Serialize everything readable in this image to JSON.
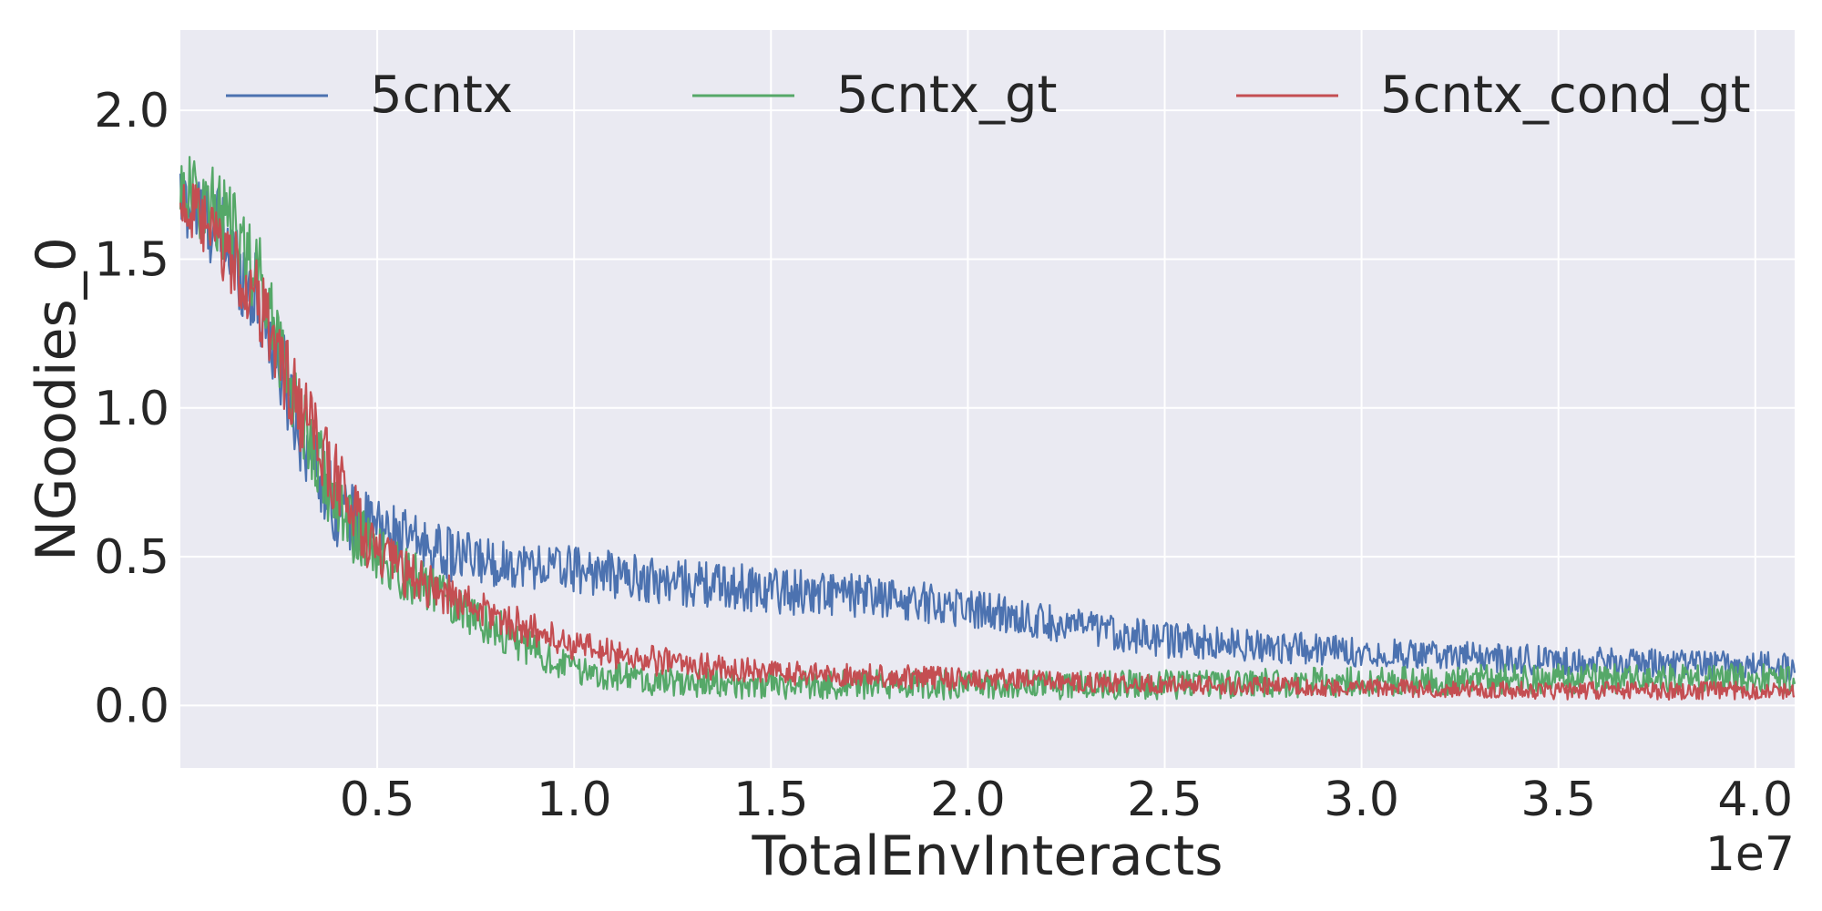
{
  "chart_data": {
    "type": "line",
    "title": "",
    "xlabel": "TotalEnvInteracts",
    "ylabel": "NGoodies_0",
    "x_offset_text": "1e7",
    "xlim": [
      0.0,
      4.1
    ],
    "ylim": [
      -0.21,
      2.27
    ],
    "x_ticks": [
      0.5,
      1.0,
      1.5,
      2.0,
      2.5,
      3.0,
      3.5,
      4.0
    ],
    "x_tick_labels": [
      "0.5",
      "1.0",
      "1.5",
      "2.0",
      "2.5",
      "3.0",
      "3.5",
      "4.0"
    ],
    "y_ticks": [
      0.0,
      0.5,
      1.0,
      1.5,
      2.0
    ],
    "y_tick_labels": [
      "0.0",
      "0.5",
      "1.0",
      "1.5",
      "2.0"
    ],
    "grid": true,
    "legend_placement": "top",
    "background": "#eaeaf2",
    "series": [
      {
        "name": "5cntx",
        "color": "#4c72b0",
        "x": [
          0.0,
          0.1,
          0.2,
          0.3,
          0.4,
          0.5,
          0.6,
          0.7,
          0.8,
          0.9,
          1.0,
          1.2,
          1.4,
          1.6,
          1.8,
          2.0,
          2.2,
          2.5,
          3.0,
          3.5,
          4.1
        ],
        "y": [
          1.7,
          1.6,
          1.35,
          0.95,
          0.65,
          0.6,
          0.55,
          0.5,
          0.48,
          0.47,
          0.46,
          0.42,
          0.4,
          0.38,
          0.36,
          0.33,
          0.28,
          0.22,
          0.18,
          0.15,
          0.13
        ],
        "noise": [
          0.12,
          0.15,
          0.15,
          0.15,
          0.12,
          0.1,
          0.09,
          0.09,
          0.08,
          0.08,
          0.08,
          0.08,
          0.08,
          0.08,
          0.07,
          0.07,
          0.06,
          0.06,
          0.05,
          0.05,
          0.05
        ]
      },
      {
        "name": "5cntx_gt",
        "color": "#55a868",
        "x": [
          0.0,
          0.1,
          0.2,
          0.3,
          0.4,
          0.5,
          0.6,
          0.7,
          0.8,
          0.9,
          1.0,
          1.2,
          1.5,
          2.0,
          2.5,
          3.0,
          3.5,
          4.1
        ],
        "y": [
          1.75,
          1.65,
          1.45,
          1.0,
          0.65,
          0.5,
          0.42,
          0.34,
          0.26,
          0.18,
          0.12,
          0.08,
          0.07,
          0.07,
          0.07,
          0.08,
          0.09,
          0.09
        ],
        "noise": [
          0.12,
          0.15,
          0.15,
          0.15,
          0.12,
          0.1,
          0.09,
          0.08,
          0.07,
          0.06,
          0.05,
          0.05,
          0.05,
          0.05,
          0.05,
          0.05,
          0.05,
          0.05
        ]
      },
      {
        "name": "5cntx_cond_gt",
        "color": "#c44e52",
        "x": [
          0.0,
          0.1,
          0.2,
          0.3,
          0.4,
          0.5,
          0.6,
          0.7,
          0.8,
          0.9,
          1.0,
          1.2,
          1.5,
          2.0,
          2.5,
          3.0,
          3.5,
          4.1
        ],
        "y": [
          1.7,
          1.55,
          1.35,
          1.0,
          0.75,
          0.5,
          0.42,
          0.36,
          0.3,
          0.25,
          0.2,
          0.15,
          0.11,
          0.09,
          0.07,
          0.06,
          0.05,
          0.05
        ],
        "noise": [
          0.1,
          0.12,
          0.14,
          0.14,
          0.12,
          0.1,
          0.08,
          0.07,
          0.06,
          0.06,
          0.05,
          0.05,
          0.04,
          0.04,
          0.03,
          0.03,
          0.03,
          0.03
        ]
      }
    ]
  }
}
